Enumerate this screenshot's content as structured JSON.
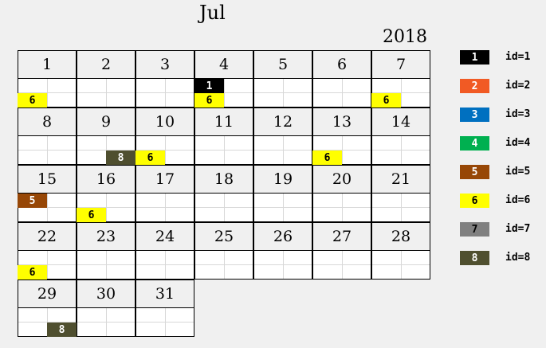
{
  "header": {
    "month": "Jul",
    "year": "2018"
  },
  "days": [
    "1",
    "2",
    "3",
    "4",
    "5",
    "6",
    "7",
    "8",
    "9",
    "10",
    "11",
    "12",
    "13",
    "14",
    "15",
    "16",
    "17",
    "18",
    "19",
    "20",
    "21",
    "22",
    "23",
    "24",
    "25",
    "26",
    "27",
    "28",
    "29",
    "30",
    "31"
  ],
  "events": [
    {
      "day": 1,
      "id": "6",
      "slot": "bottom-left"
    },
    {
      "day": 4,
      "id": "1",
      "slot": "top-left"
    },
    {
      "day": 4,
      "id": "6",
      "slot": "bottom-left"
    },
    {
      "day": 7,
      "id": "6",
      "slot": "bottom-left"
    },
    {
      "day": 9,
      "id": "8",
      "slot": "bottom-right"
    },
    {
      "day": 10,
      "id": "6",
      "slot": "bottom-left"
    },
    {
      "day": 13,
      "id": "6",
      "slot": "bottom-left"
    },
    {
      "day": 15,
      "id": "5",
      "slot": "top-left"
    },
    {
      "day": 16,
      "id": "6",
      "slot": "bottom-left"
    },
    {
      "day": 22,
      "id": "6",
      "slot": "bottom-left"
    },
    {
      "day": 29,
      "id": "8",
      "slot": "bottom-right"
    }
  ],
  "legend": [
    {
      "id": "1",
      "label": "id=1",
      "color": "#000000",
      "text_color": "#ffffff"
    },
    {
      "id": "2",
      "label": "id=2",
      "color": "#f15a24",
      "text_color": "#ffffff"
    },
    {
      "id": "3",
      "label": "id=3",
      "color": "#0070c0",
      "text_color": "#ffffff"
    },
    {
      "id": "4",
      "label": "id=4",
      "color": "#00b050",
      "text_color": "#ffffff"
    },
    {
      "id": "5",
      "label": "id=5",
      "color": "#974706",
      "text_color": "#ffffff"
    },
    {
      "id": "6",
      "label": "id=6",
      "color": "#ffff00",
      "text_color": "#000000"
    },
    {
      "id": "7",
      "label": "id=7",
      "color": "#808080",
      "text_color": "#000000"
    },
    {
      "id": "8",
      "label": "id=8",
      "color": "#4f4f2f",
      "text_color": "#ffffff"
    }
  ]
}
